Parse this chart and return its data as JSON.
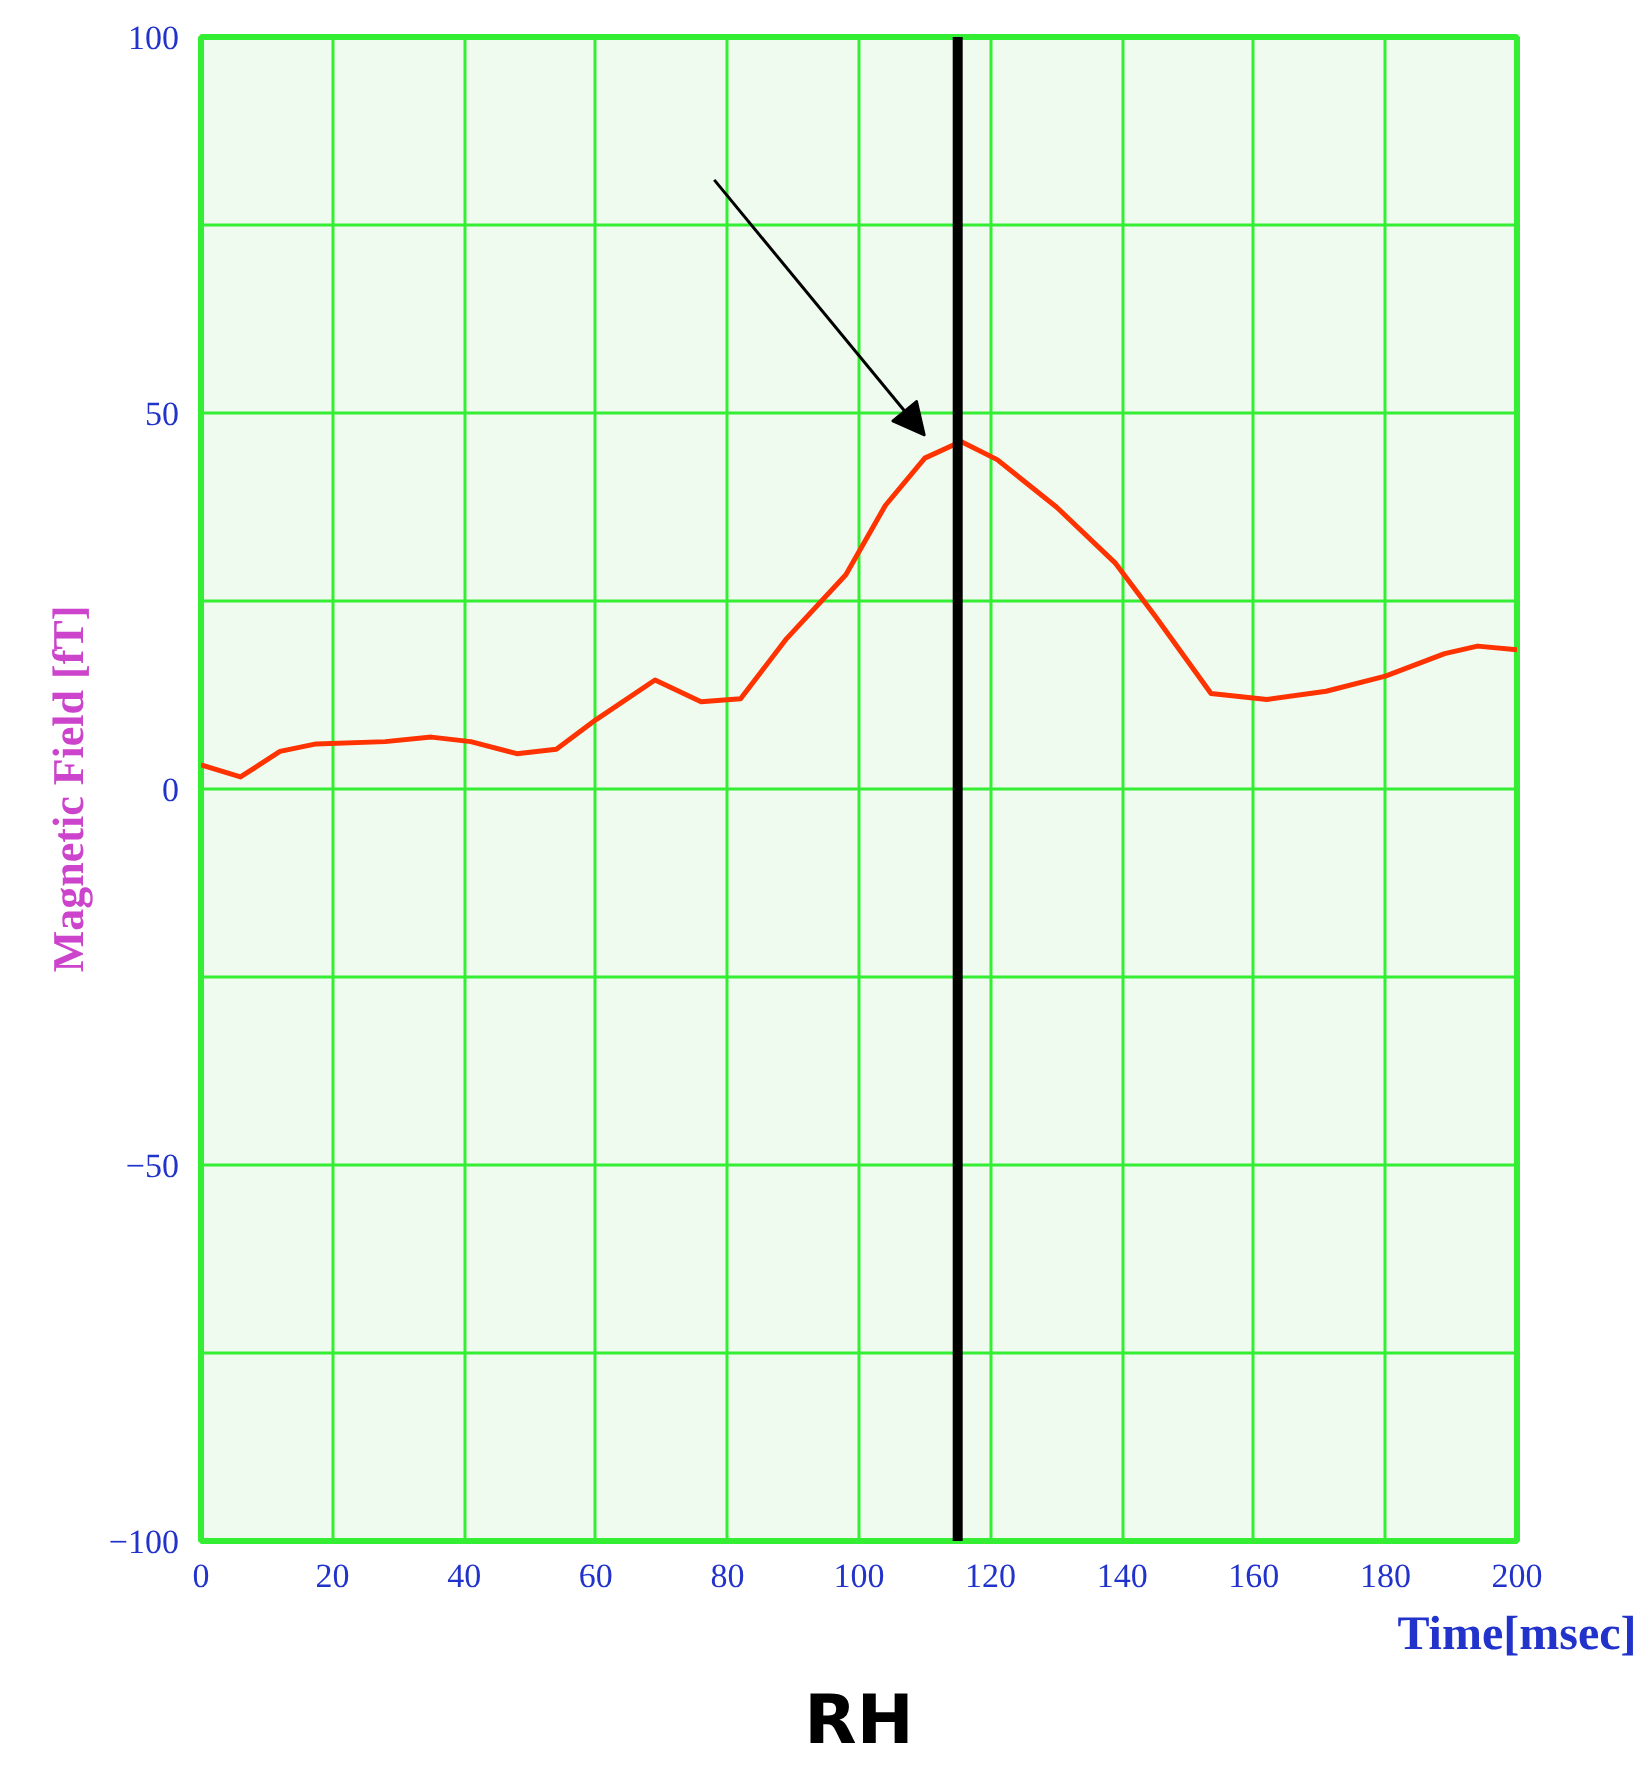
{
  "chart_data": {
    "type": "line",
    "xlabel": "Time[msec]",
    "ylabel": "Magnetic Field [fT]",
    "annotations": [
      "RH"
    ],
    "x": [
      0,
      6,
      12,
      17.5,
      28,
      35,
      41,
      48,
      54,
      60,
      69,
      76,
      82,
      89,
      98,
      104,
      110,
      115.5,
      121,
      130,
      139,
      145,
      153.5,
      162,
      171,
      180,
      189,
      194,
      200
    ],
    "series": [
      {
        "color": "#ff3300",
        "values": [
          3.2,
          1.6,
          5,
          6,
          6.3,
          6.9,
          6.3,
          4.7,
          5.3,
          9.2,
          14.5,
          11.6,
          12,
          20,
          28.5,
          37.7,
          44,
          46.2,
          43.8,
          37.5,
          30,
          23,
          12.7,
          11.9,
          13,
          15,
          18,
          19,
          18.5
        ]
      }
    ],
    "xlim": [
      0,
      200
    ],
    "ylim": [
      -100,
      100
    ],
    "xticks": [
      0,
      20,
      40,
      60,
      80,
      100,
      120,
      140,
      160,
      180,
      200
    ],
    "yticks": [
      -100,
      {
        "value": -75,
        "label": null
      },
      -50,
      {
        "value": -25,
        "label": null
      },
      0,
      {
        "value": 25,
        "label": null
      },
      50,
      {
        "value": 75,
        "label": null
      },
      100
    ],
    "grid": true,
    "ref_lines": [
      {
        "axis": "x",
        "value": 115,
        "color": "#000000"
      }
    ],
    "marker": "none",
    "line_style": "solid"
  }
}
